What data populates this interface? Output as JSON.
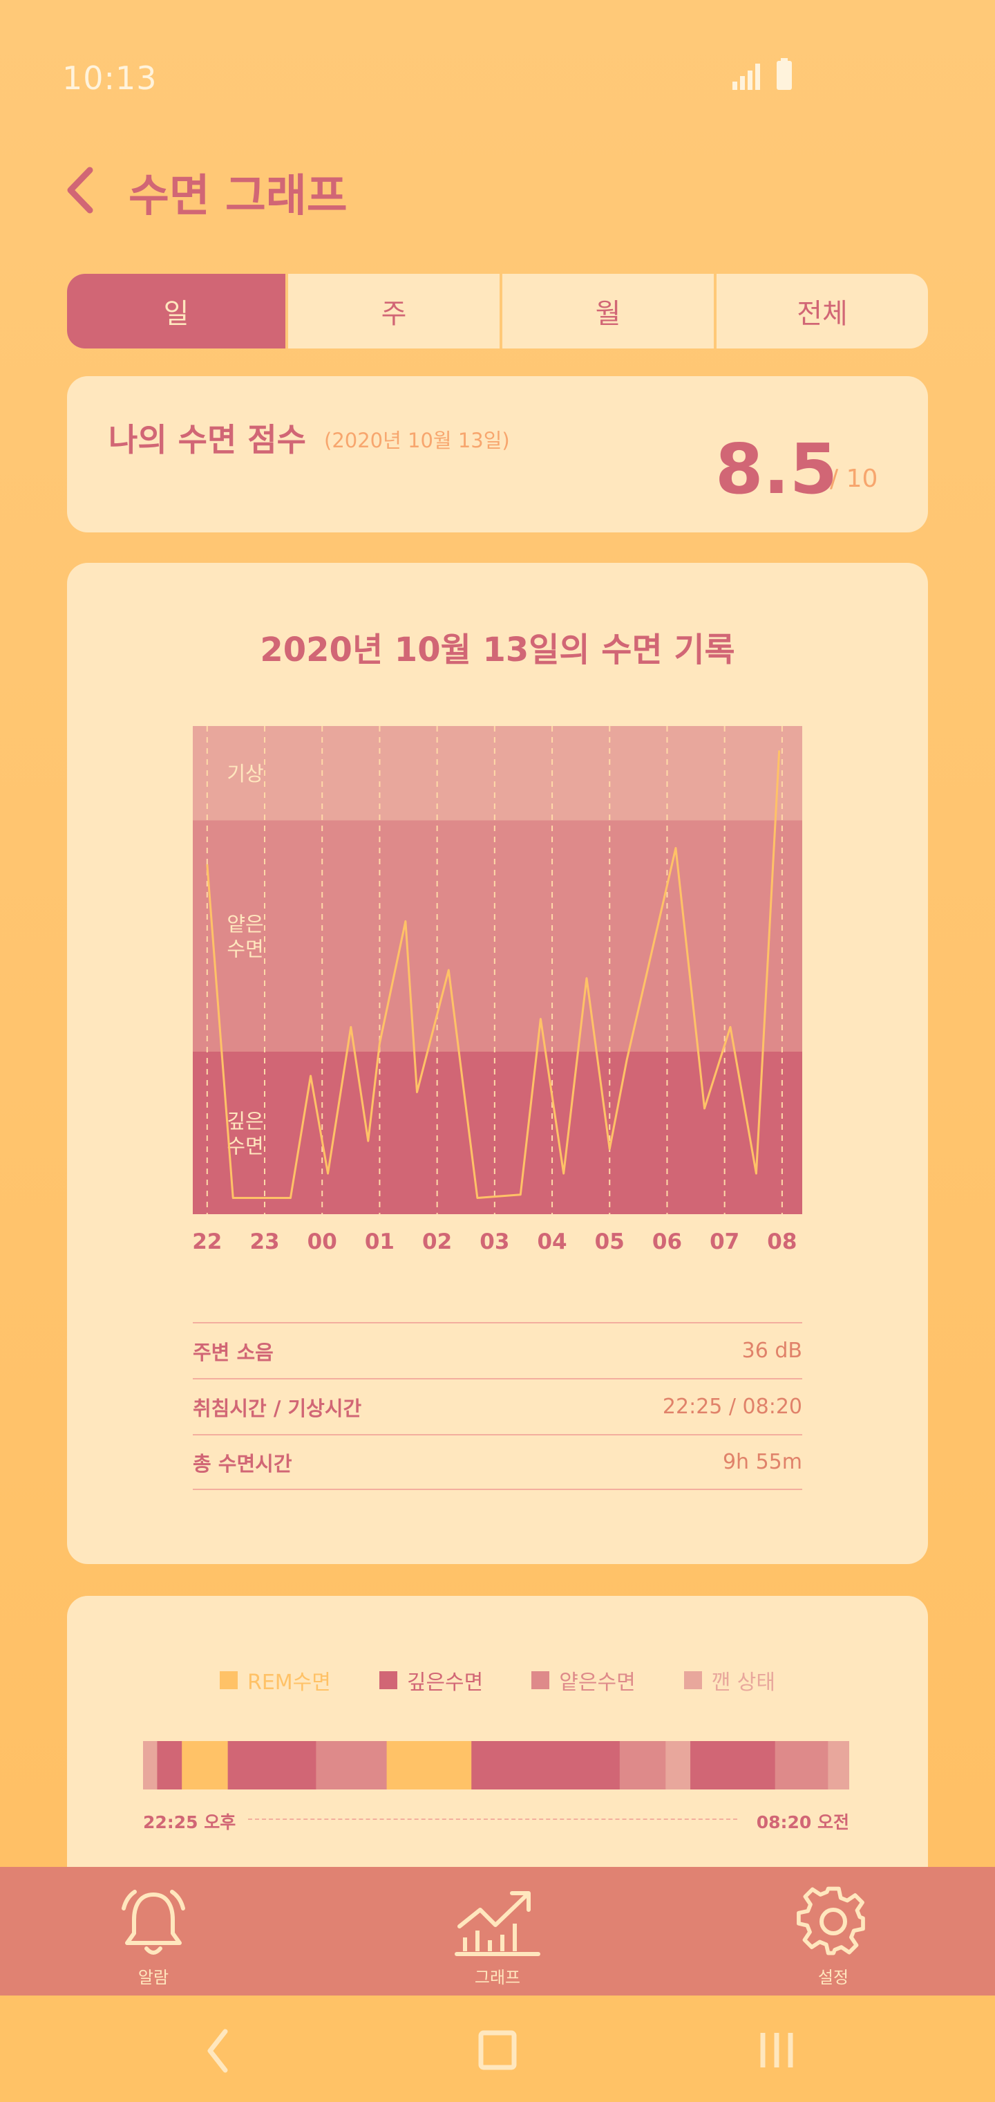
{
  "status_bar": {
    "time": "10:13",
    "signal_icon": "signal-icon",
    "battery_icon": "battery-icon"
  },
  "header": {
    "title": "수면 그래프",
    "back_icon": "chevron-left-icon"
  },
  "tabs": [
    {
      "label": "일",
      "active": true
    },
    {
      "label": "주",
      "active": false
    },
    {
      "label": "월",
      "active": false
    },
    {
      "label": "전체",
      "active": false
    }
  ],
  "score": {
    "label": "나의 수면 점수",
    "date": "(2020년 10월 13일)",
    "value": "8.5",
    "max": "/ 10"
  },
  "chart_data": {
    "type": "line",
    "title": "2020년 10월 13일의 수면 기록",
    "x_tick_labels": [
      "22",
      "23",
      "00",
      "01",
      "02",
      "03",
      "04",
      "05",
      "06",
      "07",
      "08"
    ],
    "x_range": [
      21.75,
      32.35
    ],
    "y_range": [
      0,
      3
    ],
    "bands": [
      {
        "label": "기상",
        "from": 2.42,
        "to": 3,
        "color": "#E8A79C"
      },
      {
        "label": "얕은\n수면",
        "from": 1,
        "to": 2.42,
        "color": "#DE8A8A"
      },
      {
        "label": "깊은\n수면",
        "from": 0,
        "to": 1,
        "color": "#D16675"
      }
    ],
    "line_color": "#FFC267",
    "series": [
      {
        "x": [
          22.0,
          22.45,
          23.0,
          23.45,
          23.8,
          24.1,
          24.5,
          24.8,
          25.0,
          25.45,
          25.65,
          26.2,
          26.7,
          27.45,
          27.8,
          28.2,
          28.6,
          29.0,
          29.3,
          30.15,
          30.65,
          31.1,
          31.55,
          31.95
        ],
        "y": [
          2.15,
          0.1,
          0.1,
          0.1,
          0.85,
          0.25,
          1.15,
          0.45,
          1.05,
          1.8,
          0.75,
          1.5,
          0.1,
          0.12,
          1.2,
          0.25,
          1.45,
          0.4,
          0.95,
          2.25,
          0.65,
          1.15,
          0.25,
          2.85
        ]
      }
    ]
  },
  "info": [
    {
      "label": "주변 소음",
      "value": "36 dB"
    },
    {
      "label": "취침시간 / 기상시간",
      "value": "22:25 / 08:20"
    },
    {
      "label": "총 수면시간",
      "value": "9h 55m"
    }
  ],
  "legend": [
    {
      "label": "REM수면",
      "color": "#FFC267"
    },
    {
      "label": "깊은수면",
      "color": "#D16675"
    },
    {
      "label": "얕은수면",
      "color": "#DE8A8A"
    },
    {
      "label": "깬 상태",
      "color": "#E8A79C"
    }
  ],
  "timeline": {
    "start_label": "22:25 오후",
    "end_label": "08:20 오전",
    "segments": [
      {
        "stage": "awake",
        "fraction": 0.02
      },
      {
        "stage": "deep",
        "fraction": 0.035
      },
      {
        "stage": "rem",
        "fraction": 0.065
      },
      {
        "stage": "deep",
        "fraction": 0.125
      },
      {
        "stage": "light",
        "fraction": 0.1
      },
      {
        "stage": "rem",
        "fraction": 0.12
      },
      {
        "stage": "deep",
        "fraction": 0.21
      },
      {
        "stage": "light",
        "fraction": 0.065
      },
      {
        "stage": "awake",
        "fraction": 0.035
      },
      {
        "stage": "deep",
        "fraction": 0.12
      },
      {
        "stage": "light",
        "fraction": 0.075
      },
      {
        "stage": "awake",
        "fraction": 0.03
      }
    ]
  },
  "bottom_nav": [
    {
      "label": "알람",
      "icon": "bell-icon"
    },
    {
      "label": "그래프",
      "icon": "chart-icon"
    },
    {
      "label": "설정",
      "icon": "gear-icon"
    }
  ],
  "system_nav": {
    "back_icon": "system-back-icon",
    "home_icon": "system-home-icon",
    "recents_icon": "system-recents-icon"
  }
}
